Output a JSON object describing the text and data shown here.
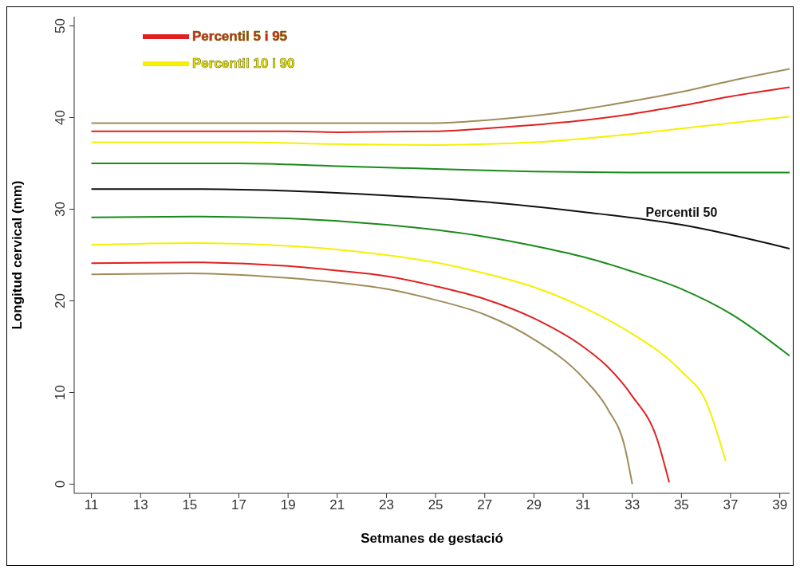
{
  "chart_data": {
    "type": "line",
    "xlabel": "Setmanes de gestació",
    "ylabel": "Longitud cervical (mm)",
    "xlim": [
      10.3,
      39.4
    ],
    "ylim": [
      -1,
      51
    ],
    "xticks": [
      11,
      13,
      15,
      17,
      19,
      21,
      23,
      25,
      27,
      29,
      31,
      33,
      35,
      37,
      39
    ],
    "yticks": [
      0,
      10,
      20,
      30,
      40,
      50
    ],
    "grid": false,
    "legend": "top left",
    "marker": "none",
    "line_style": "solid",
    "series": [
      {
        "color": "#a08c5a",
        "x": [
          11,
          15,
          19,
          23,
          25,
          27,
          29,
          31,
          33,
          35,
          37,
          39.4
        ],
        "values": [
          39.4,
          39.4,
          39.4,
          39.4,
          39.4,
          39.7,
          40.2,
          40.9,
          41.8,
          42.8,
          44,
          45.3
        ]
      },
      {
        "name": "Percentil 5 i 95",
        "color": "#e02020",
        "x": [
          11,
          15,
          19,
          21,
          25,
          27,
          29,
          31,
          33,
          35,
          37,
          39.4
        ],
        "values": [
          38.5,
          38.5,
          38.5,
          38.4,
          38.5,
          38.8,
          39.2,
          39.7,
          40.4,
          41.3,
          42.3,
          43.3
        ]
      },
      {
        "name": "Percentil 10 i 90",
        "color": "#f5f000",
        "x": [
          11,
          15,
          17,
          21,
          25,
          27,
          29,
          31,
          33,
          35,
          37,
          39.4
        ],
        "values": [
          37.3,
          37.3,
          37.3,
          37.1,
          37,
          37.1,
          37.3,
          37.7,
          38.2,
          38.8,
          39.4,
          40.1
        ]
      },
      {
        "color": "#1a8a1a",
        "x": [
          11,
          15,
          17,
          21,
          25,
          29,
          33,
          39.4
        ],
        "values": [
          35,
          35,
          35,
          34.7,
          34.4,
          34.1,
          34,
          34
        ]
      },
      {
        "name": "Percentil 50",
        "color": "#111111",
        "x": [
          11,
          15,
          19,
          23,
          27,
          31,
          35,
          39.4
        ],
        "values": [
          32.2,
          32.2,
          32,
          31.5,
          30.8,
          29.7,
          28.3,
          25.7
        ]
      },
      {
        "color": "#1a8a1a",
        "x": [
          11,
          15,
          19,
          23,
          27,
          29,
          31,
          33,
          35,
          37,
          39.4
        ],
        "values": [
          29.1,
          29.2,
          29,
          28.3,
          27,
          26,
          24.8,
          23.2,
          21.3,
          18.6,
          14
        ]
      },
      {
        "color": "#f5f000",
        "x": [
          11,
          15,
          19,
          23,
          25,
          27,
          29,
          31,
          33,
          35,
          36,
          36.8
        ],
        "values": [
          26.1,
          26.3,
          26,
          25,
          24.2,
          23,
          21.5,
          19.3,
          16.4,
          12.3,
          9,
          2.5
        ]
      },
      {
        "color": "#e02020",
        "x": [
          11,
          15,
          19,
          21,
          23,
          25,
          27,
          29,
          31,
          32,
          33,
          34,
          34.5
        ],
        "values": [
          24.1,
          24.2,
          23.8,
          23.3,
          22.7,
          21.6,
          20.2,
          18.1,
          15,
          12.8,
          9.6,
          5,
          0.2
        ]
      },
      {
        "color": "#a08c5a",
        "x": [
          11,
          15,
          19,
          21,
          23,
          25,
          27,
          29,
          31,
          32,
          32.7,
          33
        ],
        "values": [
          22.9,
          23,
          22.5,
          22,
          21.3,
          20.1,
          18.5,
          15.8,
          11.6,
          8.2,
          4,
          0
        ]
      }
    ]
  }
}
